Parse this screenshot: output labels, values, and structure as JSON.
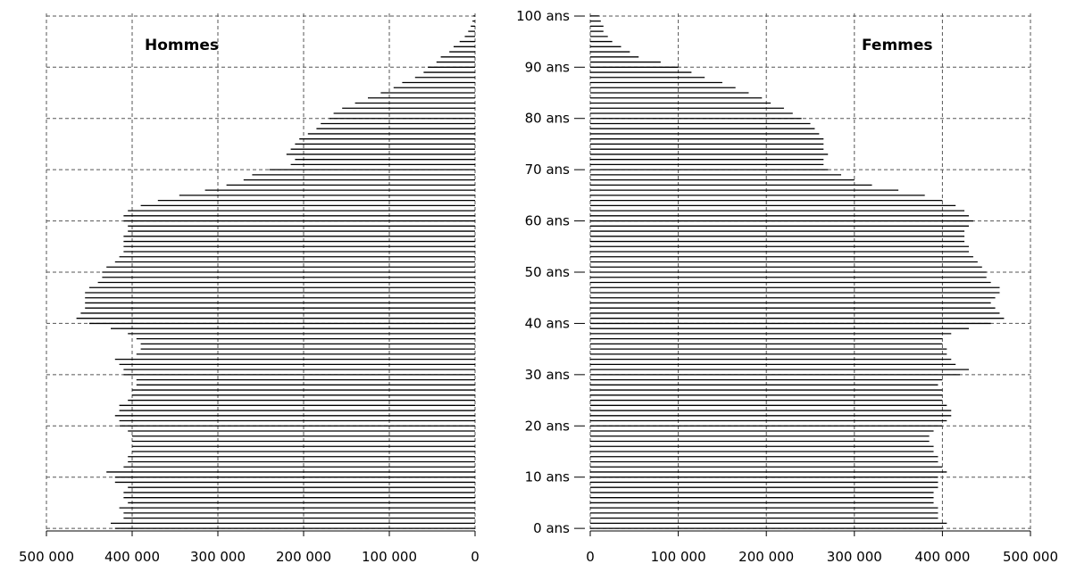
{
  "chart_data": {
    "type": "bar",
    "subtype": "population-pyramid",
    "orientation": "horizontal",
    "grid": true,
    "panels": [
      {
        "name": "Hommes",
        "side": "left",
        "xticks": [
          "500 000",
          "400 000",
          "300 000",
          "200 000",
          "100 000",
          "0"
        ],
        "xlim": [
          0,
          500000
        ]
      },
      {
        "name": "Femmes",
        "side": "right",
        "xticks": [
          "0",
          "100 000",
          "200 000",
          "300 000",
          "400 000",
          "500 000"
        ],
        "xlim": [
          0,
          500000
        ]
      }
    ],
    "age_tick_labels": [
      "0 ans",
      "10 ans",
      "20 ans",
      "30 ans",
      "40 ans",
      "50 ans",
      "60 ans",
      "70 ans",
      "80 ans",
      "90 ans",
      "100 ans"
    ],
    "ages": [
      0,
      1,
      2,
      3,
      4,
      5,
      6,
      7,
      8,
      9,
      10,
      11,
      12,
      13,
      14,
      15,
      16,
      17,
      18,
      19,
      20,
      21,
      22,
      23,
      24,
      25,
      26,
      27,
      28,
      29,
      30,
      31,
      32,
      33,
      34,
      35,
      36,
      37,
      38,
      39,
      40,
      41,
      42,
      43,
      44,
      45,
      46,
      47,
      48,
      49,
      50,
      51,
      52,
      53,
      54,
      55,
      56,
      57,
      58,
      59,
      60,
      61,
      62,
      63,
      64,
      65,
      66,
      67,
      68,
      69,
      70,
      71,
      72,
      73,
      74,
      75,
      76,
      77,
      78,
      79,
      80,
      81,
      82,
      83,
      84,
      85,
      86,
      87,
      88,
      89,
      90,
      91,
      92,
      93,
      94,
      95,
      96,
      97,
      98,
      99,
      100
    ],
    "series": [
      {
        "name": "Hommes",
        "values": [
          420000,
          425000,
          410000,
          410000,
          415000,
          405000,
          410000,
          410000,
          405000,
          420000,
          420000,
          430000,
          410000,
          405000,
          405000,
          400000,
          400000,
          400000,
          400000,
          405000,
          415000,
          415000,
          420000,
          415000,
          415000,
          405000,
          400000,
          400000,
          395000,
          395000,
          410000,
          410000,
          415000,
          420000,
          395000,
          390000,
          390000,
          395000,
          405000,
          425000,
          450000,
          465000,
          460000,
          455000,
          455000,
          455000,
          455000,
          450000,
          440000,
          435000,
          435000,
          430000,
          420000,
          415000,
          410000,
          410000,
          410000,
          410000,
          405000,
          405000,
          410000,
          410000,
          405000,
          390000,
          370000,
          345000,
          315000,
          290000,
          270000,
          260000,
          240000,
          215000,
          210000,
          220000,
          215000,
          210000,
          205000,
          195000,
          185000,
          180000,
          170000,
          165000,
          155000,
          140000,
          125000,
          110000,
          95000,
          85000,
          70000,
          60000,
          55000,
          45000,
          40000,
          30000,
          25000,
          18000,
          12000,
          8000,
          5000,
          3000,
          2000
        ]
      },
      {
        "name": "Femmes",
        "values": [
          400000,
          405000,
          395000,
          395000,
          395000,
          390000,
          390000,
          390000,
          395000,
          395000,
          395000,
          405000,
          400000,
          395000,
          395000,
          390000,
          390000,
          385000,
          385000,
          390000,
          400000,
          405000,
          410000,
          410000,
          405000,
          400000,
          400000,
          400000,
          395000,
          400000,
          420000,
          430000,
          415000,
          410000,
          405000,
          405000,
          400000,
          400000,
          410000,
          430000,
          455000,
          470000,
          465000,
          460000,
          455000,
          460000,
          465000,
          465000,
          455000,
          450000,
          450000,
          445000,
          440000,
          435000,
          430000,
          430000,
          425000,
          425000,
          425000,
          430000,
          435000,
          430000,
          425000,
          415000,
          400000,
          380000,
          350000,
          320000,
          300000,
          285000,
          270000,
          265000,
          265000,
          270000,
          265000,
          265000,
          265000,
          260000,
          255000,
          250000,
          240000,
          230000,
          220000,
          205000,
          195000,
          180000,
          165000,
          150000,
          130000,
          115000,
          100000,
          80000,
          55000,
          45000,
          35000,
          25000,
          20000,
          15000,
          15000,
          12000,
          10000
        ]
      }
    ]
  }
}
